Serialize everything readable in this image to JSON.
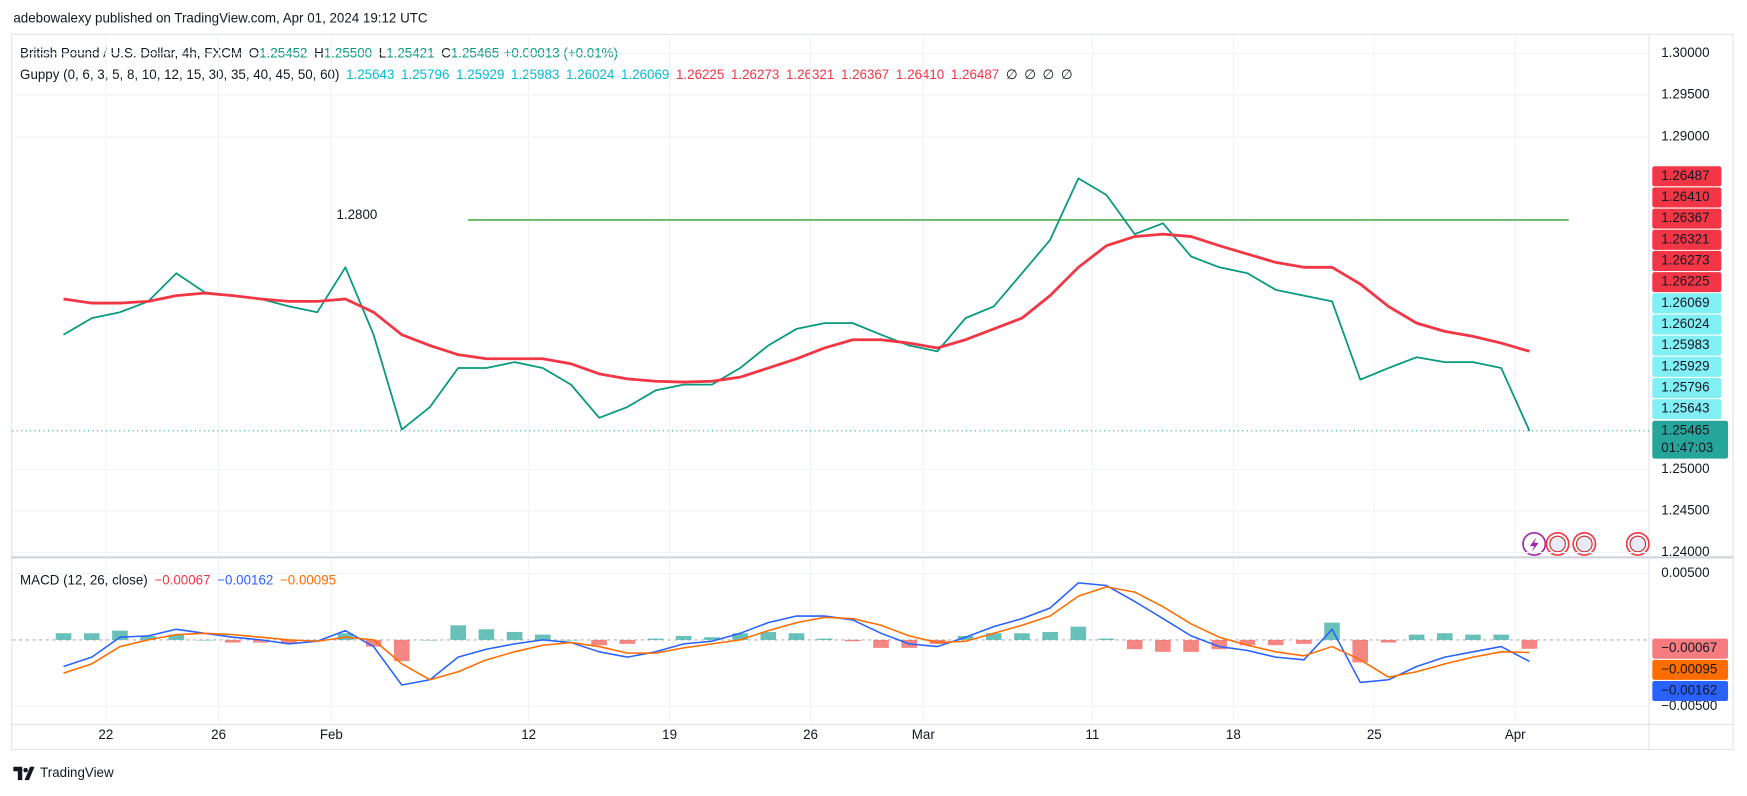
{
  "header": {
    "published": "adebowalexy published on TradingView.com, Apr 01, 2024 19:12 UTC",
    "symbol": "British Pound / U.S. Dollar, 4h, FXCM",
    "ohlc": [
      {
        "key": "O",
        "value": "1.25452"
      },
      {
        "key": "H",
        "value": "1.25500"
      },
      {
        "key": "L",
        "value": "1.25421"
      },
      {
        "key": "C",
        "value": "1.25465"
      }
    ],
    "change": "+0.00013 (+0.01%)",
    "value_color": "#089981"
  },
  "guppy": {
    "title": "Guppy (0, 6, 3, 5, 8, 10, 12, 15, 30, 35, 40, 45, 50, 60)",
    "values": [
      {
        "text": "1.25643",
        "color": "#00bcd4"
      },
      {
        "text": "1.25796",
        "color": "#00bcd4"
      },
      {
        "text": "1.25929",
        "color": "#00bcd4"
      },
      {
        "text": "1.25983",
        "color": "#00bcd4"
      },
      {
        "text": "1.26024",
        "color": "#00bcd4"
      },
      {
        "text": "1.26069",
        "color": "#00bcd4"
      },
      {
        "text": "1.26225",
        "color": "#f23645"
      },
      {
        "text": "1.26273",
        "color": "#f23645"
      },
      {
        "text": "1.26321",
        "color": "#f23645"
      },
      {
        "text": "1.26367",
        "color": "#f23645"
      },
      {
        "text": "1.26410",
        "color": "#f23645"
      },
      {
        "text": "1.26487",
        "color": "#f23645"
      },
      {
        "text": "∅",
        "color": "#131722"
      },
      {
        "text": "∅",
        "color": "#131722"
      },
      {
        "text": "∅",
        "color": "#131722"
      },
      {
        "text": "∅",
        "color": "#131722"
      }
    ],
    "axis_labels": [
      {
        "text": "1.26487",
        "color": "#f23645",
        "text_color": "#ffffff"
      },
      {
        "text": "1.26410",
        "color": "#f23645",
        "text_color": "#ffffff"
      },
      {
        "text": "1.26367",
        "color": "#f23645",
        "text_color": "#ffffff"
      },
      {
        "text": "1.26321",
        "color": "#f23645",
        "text_color": "#ffffff"
      },
      {
        "text": "1.26273",
        "color": "#f23645",
        "text_color": "#ffffff"
      },
      {
        "text": "1.26225",
        "color": "#f23645",
        "text_color": "#ffffff"
      },
      {
        "text": "1.26069",
        "color": "#80f0f5",
        "text_color": "#131722"
      },
      {
        "text": "1.26024",
        "color": "#80f0f5",
        "text_color": "#131722"
      },
      {
        "text": "1.25983",
        "color": "#80f0f5",
        "text_color": "#131722"
      },
      {
        "text": "1.25929",
        "color": "#80f0f5",
        "text_color": "#131722"
      },
      {
        "text": "1.25796",
        "color": "#80f0f5",
        "text_color": "#131722"
      },
      {
        "text": "1.25643",
        "color": "#80f0f5",
        "text_color": "#131722"
      }
    ]
  },
  "macd_legend": {
    "title": "MACD (12, 26, close)",
    "values": [
      {
        "text": "−0.00067",
        "color": "#f23645"
      },
      {
        "text": "−0.00162",
        "color": "#2962ff"
      },
      {
        "text": "−0.00095",
        "color": "#ff6d00"
      }
    ],
    "axis_labels": [
      {
        "text": "−0.00067",
        "color": "#f77c80"
      },
      {
        "text": "−0.00095",
        "color": "#ff6d00"
      },
      {
        "text": "−0.00162",
        "color": "#2962ff"
      }
    ]
  },
  "footer": {
    "brand": "TradingView"
  },
  "chart_data": [
    {
      "type": "line",
      "x": [
        "2024-01-18",
        "2024-01-19",
        "2024-01-22",
        "2024-01-23",
        "2024-01-24",
        "2024-01-25",
        "2024-01-26",
        "2024-01-29",
        "2024-01-30",
        "2024-01-31",
        "2024-02-01",
        "2024-02-02",
        "2024-02-05",
        "2024-02-06",
        "2024-02-07",
        "2024-02-08",
        "2024-02-09",
        "2024-02-12",
        "2024-02-13",
        "2024-02-14",
        "2024-02-15",
        "2024-02-16",
        "2024-02-19",
        "2024-02-20",
        "2024-02-21",
        "2024-02-22",
        "2024-02-23",
        "2024-02-26",
        "2024-02-27",
        "2024-02-28",
        "2024-02-29",
        "2024-03-01",
        "2024-03-04",
        "2024-03-05",
        "2024-03-06",
        "2024-03-07",
        "2024-03-08",
        "2024-03-11",
        "2024-03-12",
        "2024-03-13",
        "2024-03-14",
        "2024-03-15",
        "2024-03-18",
        "2024-03-19",
        "2024-03-20",
        "2024-03-21",
        "2024-03-22",
        "2024-03-25",
        "2024-03-26",
        "2024-03-27",
        "2024-03-28",
        "2024-03-29",
        "2024-04-01"
      ],
      "series": [
        {
          "color": "#089981",
          "values": [
            1.2662,
            1.2682,
            1.2689,
            1.2702,
            1.2736,
            1.2713,
            1.2709,
            1.2705,
            1.2696,
            1.2689,
            1.2743,
            1.2662,
            1.2548,
            1.2575,
            1.2622,
            1.2622,
            1.2629,
            1.2622,
            1.2602,
            1.2562,
            1.2575,
            1.2595,
            1.2602,
            1.2602,
            1.2622,
            1.2649,
            1.2669,
            1.2676,
            1.2676,
            1.2662,
            1.2649,
            1.2642,
            1.2682,
            1.2696,
            1.2736,
            1.2776,
            1.285,
            1.283,
            1.2783,
            1.2796,
            1.2756,
            1.2743,
            1.2736,
            1.2716,
            1.2709,
            1.2702,
            1.2608,
            1.2622,
            1.2635,
            1.2629,
            1.2629,
            1.2622,
            1.25465
          ]
        },
        {
          "color": "#f23645",
          "values": [
            1.2705,
            1.27,
            1.27,
            1.2702,
            1.2709,
            1.2712,
            1.2709,
            1.2705,
            1.2702,
            1.2702,
            1.2705,
            1.2689,
            1.2662,
            1.2649,
            1.2638,
            1.2633,
            1.2633,
            1.2633,
            1.2627,
            1.2615,
            1.2609,
            1.2606,
            1.2605,
            1.2606,
            1.2611,
            1.2622,
            1.2633,
            1.2646,
            1.2656,
            1.2656,
            1.2652,
            1.2646,
            1.2656,
            1.2669,
            1.2682,
            1.2709,
            1.2743,
            1.2769,
            1.278,
            1.2783,
            1.278,
            1.2769,
            1.2759,
            1.2749,
            1.2743,
            1.2743,
            1.2723,
            1.2696,
            1.2676,
            1.2666,
            1.266,
            1.2652,
            1.2642
          ]
        }
      ],
      "ylim": [
        1.2397,
        1.3024
      ],
      "yticks": [
        {
          "value": 1.3,
          "label": "1.30000"
        },
        {
          "value": 1.295,
          "label": "1.29500"
        },
        {
          "value": 1.29,
          "label": "1.29000"
        },
        {
          "value": 1.25,
          "label": "1.25000"
        },
        {
          "value": 1.245,
          "label": "1.24500"
        },
        {
          "value": 1.24,
          "label": "1.24000"
        }
      ],
      "xticks": [
        {
          "value": "2024-01-22",
          "label": "22"
        },
        {
          "value": "2024-01-26",
          "label": "26"
        },
        {
          "value": "2024-02-01",
          "label": "Feb"
        },
        {
          "value": "2024-02-12",
          "label": "12"
        },
        {
          "value": "2024-02-19",
          "label": "19"
        },
        {
          "value": "2024-02-26",
          "label": "26"
        },
        {
          "value": "2024-03-01",
          "label": "Mar"
        },
        {
          "value": "2024-03-11",
          "label": "11"
        },
        {
          "value": "2024-03-18",
          "label": "18"
        },
        {
          "value": "2024-03-25",
          "label": "25"
        },
        {
          "value": "2024-04-01",
          "label": "Apr"
        }
      ],
      "hline": {
        "value": 1.28,
        "label": "1.2800",
        "color": "#4caf50"
      },
      "last_price": {
        "value": 1.25465,
        "label": "1.25465",
        "countdown": "01:47:03",
        "color": "#26a69a"
      },
      "grid": true
    },
    {
      "type": "macd",
      "series": [
        {
          "color": "#2962ff",
          "values": [
            -0.002,
            -0.0013,
            0.0002,
            0.0003,
            0.0008,
            0.0005,
            0.0002,
            0.0,
            -0.0003,
            -0.0001,
            0.0007,
            -0.0005,
            -0.0034,
            -0.003,
            -0.0013,
            -0.0007,
            -0.0003,
            0.0,
            -0.0002,
            -0.0009,
            -0.0013,
            -0.0009,
            -0.0003,
            -0.0001,
            0.0005,
            0.0013,
            0.0018,
            0.0018,
            0.0015,
            0.0005,
            -0.0003,
            -0.0005,
            0.0002,
            0.001,
            0.0016,
            0.0024,
            0.0043,
            0.0041,
            0.0029,
            0.0016,
            0.0003,
            -0.0005,
            -0.0008,
            -0.0013,
            -0.0015,
            0.0008,
            -0.0032,
            -0.003,
            -0.002,
            -0.0013,
            -0.0009,
            -0.0005,
            -0.00162
          ]
        },
        {
          "color": "#ff6d00",
          "values": [
            -0.0025,
            -0.0018,
            -0.0005,
            0.0,
            0.0004,
            0.0005,
            0.0004,
            0.0002,
            0.0,
            -0.0001,
            0.0002,
            0.0,
            -0.0018,
            -0.003,
            -0.0024,
            -0.0015,
            -0.0009,
            -0.0004,
            -0.0002,
            -0.0005,
            -0.001,
            -0.001,
            -0.0006,
            -0.0003,
            0.0,
            0.0007,
            0.0013,
            0.0017,
            0.0016,
            0.0011,
            0.0003,
            -0.0002,
            -0.0001,
            0.0005,
            0.0011,
            0.0018,
            0.0033,
            0.004,
            0.0036,
            0.0025,
            0.0012,
            0.0002,
            -0.0004,
            -0.0009,
            -0.0012,
            -0.0005,
            -0.0015,
            -0.0028,
            -0.0024,
            -0.0018,
            -0.0013,
            -0.0009,
            -0.00095
          ]
        }
      ],
      "histogram": {
        "up_color": "#26a69a",
        "down_color": "#ef5350",
        "values": [
          0.0005,
          0.0005,
          0.0007,
          0.0003,
          0.0004,
          0.0,
          -0.0002,
          -0.0002,
          -0.0003,
          0.0,
          0.0005,
          -0.0005,
          -0.0016,
          0.0,
          0.0011,
          0.0008,
          0.0006,
          0.0004,
          0.0,
          -0.0004,
          -0.0003,
          0.0001,
          0.0003,
          0.0002,
          0.0005,
          0.0006,
          0.0005,
          0.0001,
          -0.0001,
          -0.0006,
          -0.0006,
          -0.0003,
          0.0003,
          0.0005,
          0.0005,
          0.0006,
          0.001,
          0.0001,
          -0.0007,
          -0.0009,
          -0.0009,
          -0.0007,
          -0.0004,
          -0.0004,
          -0.0003,
          0.0013,
          -0.0017,
          -0.0002,
          0.0004,
          0.0005,
          0.0004,
          0.0004,
          -0.00067
        ]
      },
      "ylim": [
        -0.0062,
        0.0058
      ],
      "yticks": [
        {
          "value": 0.005,
          "label": "0.00500"
        },
        {
          "value": -0.005,
          "label": "−0.00500"
        }
      ]
    }
  ]
}
